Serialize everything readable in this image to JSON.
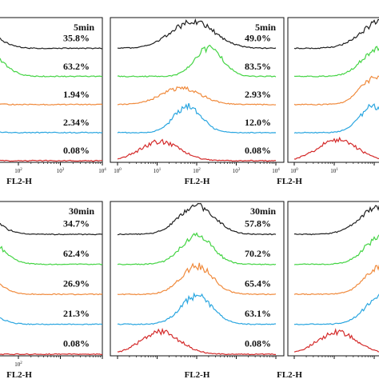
{
  "chart_data": [
    {
      "type": "histogram-overlay",
      "panel": "top-left",
      "time_label": "5min",
      "xlabel": "FL2-H",
      "x_tick_labels": [
        "10",
        "10",
        "10",
        "10"
      ],
      "x_tick_exps": [
        "1",
        "2",
        "3",
        "4"
      ],
      "xlim": [
        1,
        10000
      ],
      "x_scale": "log",
      "series": [
        {
          "color": "#1f1f1f",
          "label": "",
          "percent": "35.8%",
          "peak": 8,
          "width": 0.45,
          "height": 0.95
        },
        {
          "color": "#44d444",
          "label": "",
          "percent": "63.2%",
          "peak": 15,
          "width": 0.4,
          "height": 0.9
        },
        {
          "color": "#f08a3c",
          "label": "",
          "percent": "1.94%",
          "peak": 3,
          "width": 0.4,
          "height": 0.9
        },
        {
          "color": "#2aa6e0",
          "label": "",
          "percent": "2.34%",
          "peak": 3,
          "width": 0.4,
          "height": 0.85
        },
        {
          "color": "#d42a2a",
          "label": "",
          "percent": "0.08%",
          "peak": 2,
          "width": 0.35,
          "height": 0.8
        }
      ]
    },
    {
      "type": "histogram-overlay",
      "panel": "top-middle",
      "time_label": "5min",
      "xlabel": "FL2-H",
      "x_tick_labels": [
        "10",
        "10",
        "10",
        "10",
        "10"
      ],
      "x_tick_exps": [
        "0",
        "1",
        "2",
        "3",
        "4"
      ],
      "xlim": [
        1,
        10000
      ],
      "x_scale": "log",
      "series": [
        {
          "color": "#1f1f1f",
          "label": "",
          "percent": "49.0%",
          "peak": 80,
          "width": 0.55,
          "height": 0.9
        },
        {
          "color": "#44d444",
          "label": "",
          "percent": "83.5%",
          "peak": 200,
          "width": 0.35,
          "height": 0.95
        },
        {
          "color": "#f08a3c",
          "label": "",
          "percent": "2.93%",
          "peak": 40,
          "width": 0.5,
          "height": 0.55
        },
        {
          "color": "#2aa6e0",
          "label": "",
          "percent": "12.0%",
          "peak": 60,
          "width": 0.35,
          "height": 0.9
        },
        {
          "color": "#d42a2a",
          "label": "",
          "percent": "0.08%",
          "peak": 12,
          "width": 0.5,
          "height": 0.65
        }
      ]
    },
    {
      "type": "histogram-overlay",
      "panel": "top-right",
      "time_label": "",
      "xlabel": "FL2-H",
      "x_tick_labels": [
        "10",
        "10"
      ],
      "x_tick_exps": [
        "0",
        "1"
      ],
      "xlim": [
        1,
        10000
      ],
      "x_scale": "log",
      "series": [
        {
          "color": "#1f1f1f",
          "label": "",
          "percent": "",
          "peak": 150,
          "width": 0.5,
          "height": 0.9
        },
        {
          "color": "#44d444",
          "label": "",
          "percent": "",
          "peak": 120,
          "width": 0.4,
          "height": 0.9
        },
        {
          "color": "#f08a3c",
          "label": "",
          "percent": "",
          "peak": 100,
          "width": 0.35,
          "height": 0.9
        },
        {
          "color": "#2aa6e0",
          "label": "",
          "percent": "",
          "peak": 100,
          "width": 0.35,
          "height": 0.9
        },
        {
          "color": "#d42a2a",
          "label": "",
          "percent": "",
          "peak": 12,
          "width": 0.5,
          "height": 0.7
        }
      ]
    },
    {
      "type": "histogram-overlay",
      "panel": "bottom-left",
      "time_label": "30min",
      "xlabel": "FL2-H",
      "x_tick_labels": [
        "10"
      ],
      "x_tick_exps": [
        "2"
      ],
      "xlim": [
        1,
        10000
      ],
      "x_scale": "log",
      "series": [
        {
          "color": "#1f1f1f",
          "label": "",
          "percent": "34.7%",
          "peak": 8,
          "width": 0.45,
          "height": 0.95
        },
        {
          "color": "#44d444",
          "label": "",
          "percent": "62.4%",
          "peak": 15,
          "width": 0.4,
          "height": 0.9
        },
        {
          "color": "#f08a3c",
          "label": "",
          "percent": "26.9%",
          "peak": 10,
          "width": 0.4,
          "height": 0.9
        },
        {
          "color": "#2aa6e0",
          "label": "",
          "percent": "21.3%",
          "peak": 8,
          "width": 0.4,
          "height": 0.85
        },
        {
          "color": "#d42a2a",
          "label": "",
          "percent": "0.08%",
          "peak": 2,
          "width": 0.35,
          "height": 0.8
        }
      ]
    },
    {
      "type": "histogram-overlay",
      "panel": "bottom-middle",
      "time_label": "30min",
      "xlabel": "FL2-H",
      "x_tick_labels": [],
      "x_tick_exps": [],
      "xlim": [
        1,
        10000
      ],
      "x_scale": "log",
      "series": [
        {
          "color": "#1f1f1f",
          "label": "",
          "percent": "57.8%",
          "peak": 100,
          "width": 0.45,
          "height": 0.9
        },
        {
          "color": "#44d444",
          "label": "",
          "percent": "70.2%",
          "peak": 100,
          "width": 0.4,
          "height": 0.9
        },
        {
          "color": "#f08a3c",
          "label": "",
          "percent": "65.4%",
          "peak": 100,
          "width": 0.4,
          "height": 0.9
        },
        {
          "color": "#2aa6e0",
          "label": "",
          "percent": "63.1%",
          "peak": 100,
          "width": 0.4,
          "height": 0.9
        },
        {
          "color": "#d42a2a",
          "label": "",
          "percent": "0.08%",
          "peak": 12,
          "width": 0.5,
          "height": 0.7
        }
      ]
    },
    {
      "type": "histogram-overlay",
      "panel": "bottom-right",
      "time_label": "",
      "xlabel": "FL2-H",
      "x_tick_labels": [],
      "x_tick_exps": [],
      "xlim": [
        1,
        10000
      ],
      "x_scale": "log",
      "series": [
        {
          "color": "#1f1f1f",
          "label": "",
          "percent": "",
          "peak": 150,
          "width": 0.5,
          "height": 0.9
        },
        {
          "color": "#44d444",
          "label": "",
          "percent": "",
          "peak": 150,
          "width": 0.4,
          "height": 0.9
        },
        {
          "color": "#f08a3c",
          "label": "",
          "percent": "",
          "peak": 150,
          "width": 0.4,
          "height": 0.9
        },
        {
          "color": "#2aa6e0",
          "label": "",
          "percent": "",
          "peak": 150,
          "width": 0.4,
          "height": 0.9
        },
        {
          "color": "#d42a2a",
          "label": "",
          "percent": "",
          "peak": 12,
          "width": 0.5,
          "height": 0.7
        }
      ]
    }
  ]
}
